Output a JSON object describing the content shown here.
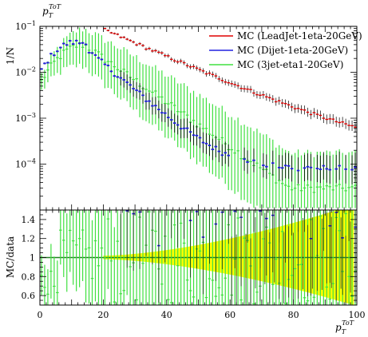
{
  "chart_data": {
    "type": "scatter",
    "title": "",
    "top_ylabel": "1/N",
    "top_xlabel": "p_T^{ToT}",
    "top_xlabel_main": "p",
    "top_xlabel_sub": "T",
    "top_xlabel_sup": "ToT",
    "ratio_ylabel": "MC/data",
    "xlabel_main": "p",
    "xlabel_sub": "T",
    "xlabel_sup": "ToT",
    "xlim": [
      0,
      100
    ],
    "ylim_top": [
      1e-05,
      0.1
    ],
    "ylim_ratio": [
      0.5,
      1.5
    ],
    "log_y_top": true,
    "legend_position": "top-right",
    "x_ticks": [
      0,
      20,
      40,
      60,
      80,
      100
    ],
    "x_tick_labels": [
      "0",
      "20",
      "40",
      "60",
      "80",
      "100"
    ],
    "y_ticks_top": [
      0.1,
      0.01,
      0.001,
      0.0001
    ],
    "y_tick_labels_top": [
      {
        "base": "10",
        "exp": "−1"
      },
      {
        "base": "10",
        "exp": "−2"
      },
      {
        "base": "10",
        "exp": "−3"
      },
      {
        "base": "10",
        "exp": "−4"
      }
    ],
    "y_ticks_ratio": [
      0.6,
      0.8,
      1.0,
      1.2,
      1.4
    ],
    "y_tick_labels_ratio": [
      "0.6",
      "0.8",
      "1",
      "1.2",
      "1.4"
    ],
    "series": [
      {
        "name": "MC (LeadJet-1eta-20GeV)",
        "color": "#e00000",
        "x_start": 20,
        "x_end": 100
      },
      {
        "name": "MC (Dijet-1eta-20GeV)",
        "color": "#2020e0",
        "x_start": 0,
        "x_end": 100
      },
      {
        "name": "MC (3jet-eta1-20GeV)",
        "color": "#40e040",
        "x_start": 0,
        "x_end": 100
      }
    ],
    "reference_band_color": "#ffff00",
    "reference_line_color": "#208020"
  }
}
